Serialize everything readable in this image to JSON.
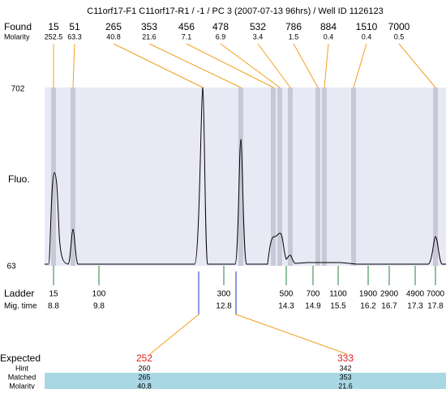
{
  "title": "C11orf17-F1  C11orf17-R1 / -1 / PC 3 (2007-07-13 96hrs) / Well ID 1126123",
  "found": {
    "label": "Found",
    "molarity_label": "Molarity",
    "peaks": [
      {
        "size": 15,
        "molarity": 252.5
      },
      {
        "size": 51,
        "molarity": 63.3
      },
      {
        "size": 265,
        "molarity": 40.8
      },
      {
        "size": 353,
        "molarity": 21.6
      },
      {
        "size": 456,
        "molarity": 7.1
      },
      {
        "size": 478,
        "molarity": 6.9
      },
      {
        "size": 532,
        "molarity": 3.4
      },
      {
        "size": 786,
        "molarity": 1.5
      },
      {
        "size": 884,
        "molarity": 0.4
      },
      {
        "size": 1510,
        "molarity": 0.4
      },
      {
        "size": 7000,
        "molarity": 0.5
      }
    ]
  },
  "y_axis": {
    "label": "Fluo.",
    "max": 702,
    "min": 63
  },
  "ladder": {
    "label": "Ladder",
    "mig_label": "Mig. time",
    "bands": [
      {
        "size": 15,
        "time": 8.8
      },
      {
        "size": 100,
        "time": 9.8
      },
      {
        "size": 300,
        "time": 12.8
      },
      {
        "size": 500,
        "time": 14.3
      },
      {
        "size": 700,
        "time": 14.9
      },
      {
        "size": 1100,
        "time": 15.5
      },
      {
        "size": 1900,
        "time": 16.2
      },
      {
        "size": 2900,
        "time": 16.7
      },
      {
        "size": 4900,
        "time": 17.3
      },
      {
        "size": 7000,
        "time": 17.8
      }
    ]
  },
  "expected": {
    "label": "Expected",
    "hint_label": "Hint",
    "matched_label": "Matched",
    "molarity_label": "Molarity",
    "items": [
      {
        "expected": 252,
        "hint": 260,
        "matched": 265,
        "molarity": 40.8
      },
      {
        "expected": 333,
        "hint": 342,
        "matched": 353,
        "molarity": 21.6
      }
    ]
  }
}
